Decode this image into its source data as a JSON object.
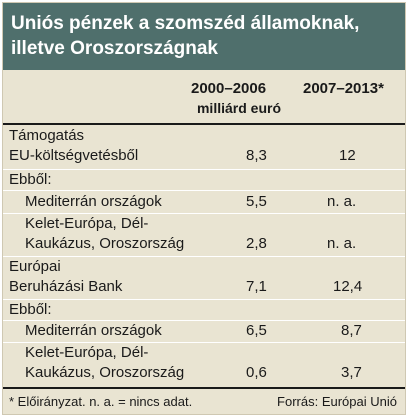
{
  "title": {
    "line1": "Uniós pénzek a szomszéd államoknak,",
    "line2": "illetve Oroszországnak"
  },
  "columns": {
    "col1": "2000–2006",
    "col2": "2007–2013*",
    "unit": "milliárd euró"
  },
  "rows": [
    {
      "label_lines": [
        "Támogatás",
        "EU-költségvetésből"
      ],
      "v1": "8,3",
      "v2": "12"
    },
    {
      "label_lines": [
        "Ebből:"
      ],
      "v1": "",
      "v2": ""
    },
    {
      "label_lines": [
        "Mediterrán országok"
      ],
      "v1": "5,5",
      "v2": "n. a."
    },
    {
      "label_lines": [
        "Kelet-Európa, Dél-",
        "Kaukázus, Oroszország"
      ],
      "v1": "2,8",
      "v2": "n. a."
    },
    {
      "label_lines": [
        "Európai",
        "Beruházási Bank"
      ],
      "v1": "7,1",
      "v2": "12,4"
    },
    {
      "label_lines": [
        "Ebből:"
      ],
      "v1": "",
      "v2": ""
    },
    {
      "label_lines": [
        "Mediterrán országok"
      ],
      "v1": "6,5",
      "v2": "8,7"
    },
    {
      "label_lines": [
        "Kelet-Európa, Dél-",
        "Kaukázus, Oroszország"
      ],
      "v1": "0,6",
      "v2": "3,7"
    }
  ],
  "footer": {
    "note": "* Előirányzat. n. a. = nincs adat.",
    "source": "Forrás: Európai Unió"
  }
}
